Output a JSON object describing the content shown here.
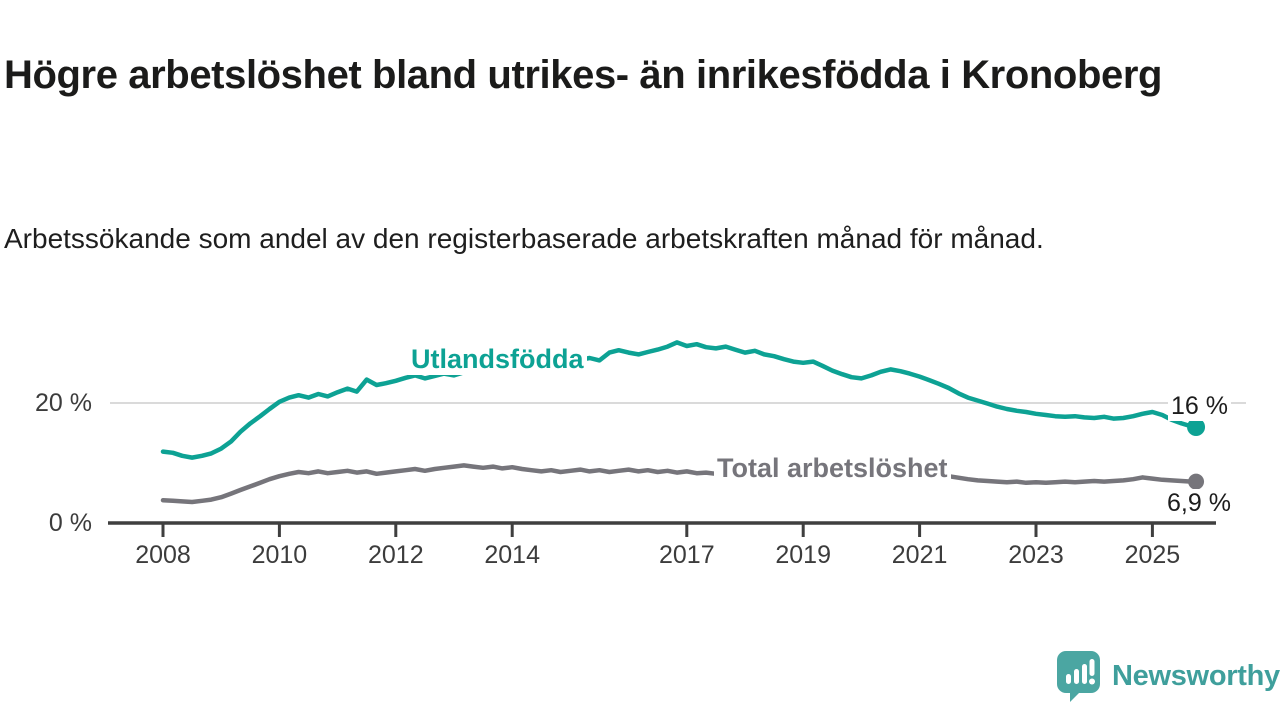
{
  "header": {
    "title": "Högre arbetslöshet bland utrikes- än inrikesfödda i Kronoberg",
    "subtitle": "Arbetssökande som andel av den registerbaserade arbetskraften månad för månad."
  },
  "footer": {
    "brand": "Newsworthy",
    "logo_icon": "bar-chart-speech-bubble-icon",
    "logo_color": "#4BA6A2",
    "text_color": "#3F9F9C"
  },
  "chart_data": {
    "type": "line",
    "title": "Högre arbetslöshet bland utrikes- än inrikesfödda i Kronoberg",
    "subtitle": "Arbetssökande som andel av den registerbaserade arbetskraften månad för månad.",
    "unit": "%",
    "xlabel": "",
    "ylabel": "",
    "x_range": [
      2007.1,
      2026.1
    ],
    "ylim": [
      0,
      33
    ],
    "grid": "horizontal line at 20 % only",
    "legend_position": "labels drawn on lines",
    "axis_color": "#3F3F3F",
    "grid_color": "#DADADA",
    "y_ticks": [
      {
        "value": 20,
        "label": "20 %"
      },
      {
        "value": 0,
        "label": "0 %"
      }
    ],
    "x_ticks": [
      {
        "year": 2008,
        "label": "2008"
      },
      {
        "year": 2010,
        "label": "2010"
      },
      {
        "year": 2012,
        "label": "2012"
      },
      {
        "year": 2014,
        "label": "2014"
      },
      {
        "year": 2017,
        "label": "2017"
      },
      {
        "year": 2019,
        "label": "2019"
      },
      {
        "year": 2021,
        "label": "2021"
      },
      {
        "year": 2023,
        "label": "2023"
      },
      {
        "year": 2025,
        "label": "2025"
      }
    ],
    "series": [
      {
        "name": "Utlandsfödda",
        "color": "#0DA294",
        "end_value": 16,
        "end_label": "16 %",
        "end_dot": true,
        "points": [
          [
            2008.0,
            11.9
          ],
          [
            2008.17,
            11.7
          ],
          [
            2008.33,
            11.2
          ],
          [
            2008.5,
            10.9
          ],
          [
            2008.67,
            11.2
          ],
          [
            2008.83,
            11.6
          ],
          [
            2009.0,
            12.4
          ],
          [
            2009.17,
            13.6
          ],
          [
            2009.33,
            15.2
          ],
          [
            2009.5,
            16.6
          ],
          [
            2009.67,
            17.8
          ],
          [
            2009.83,
            19.0
          ],
          [
            2010.0,
            20.2
          ],
          [
            2010.17,
            20.9
          ],
          [
            2010.33,
            21.3
          ],
          [
            2010.5,
            20.9
          ],
          [
            2010.67,
            21.5
          ],
          [
            2010.83,
            21.1
          ],
          [
            2011.0,
            21.8
          ],
          [
            2011.17,
            22.4
          ],
          [
            2011.33,
            21.9
          ],
          [
            2011.5,
            23.9
          ],
          [
            2011.67,
            23.0
          ],
          [
            2011.83,
            23.3
          ],
          [
            2012.0,
            23.7
          ],
          [
            2012.17,
            24.2
          ],
          [
            2012.33,
            24.6
          ],
          [
            2012.5,
            24.1
          ],
          [
            2012.67,
            24.5
          ],
          [
            2012.83,
            24.9
          ],
          [
            2013.0,
            24.6
          ],
          [
            2013.17,
            25.1
          ],
          [
            2013.33,
            25.4
          ],
          [
            2013.5,
            25.1
          ],
          [
            2013.67,
            25.6
          ],
          [
            2013.83,
            25.9
          ],
          [
            2014.0,
            25.7
          ],
          [
            2014.17,
            26.2
          ],
          [
            2014.33,
            26.4
          ],
          [
            2014.5,
            26.1
          ],
          [
            2014.67,
            26.5
          ],
          [
            2014.83,
            26.8
          ],
          [
            2015.0,
            26.6
          ],
          [
            2015.17,
            27.2
          ],
          [
            2015.33,
            27.5
          ],
          [
            2015.5,
            27.1
          ],
          [
            2015.67,
            28.4
          ],
          [
            2015.83,
            28.8
          ],
          [
            2016.0,
            28.4
          ],
          [
            2016.17,
            28.1
          ],
          [
            2016.33,
            28.5
          ],
          [
            2016.5,
            28.9
          ],
          [
            2016.67,
            29.4
          ],
          [
            2016.83,
            30.1
          ],
          [
            2017.0,
            29.5
          ],
          [
            2017.17,
            29.8
          ],
          [
            2017.33,
            29.3
          ],
          [
            2017.5,
            29.1
          ],
          [
            2017.67,
            29.4
          ],
          [
            2017.83,
            28.9
          ],
          [
            2018.0,
            28.4
          ],
          [
            2018.17,
            28.7
          ],
          [
            2018.33,
            28.1
          ],
          [
            2018.5,
            27.8
          ],
          [
            2018.67,
            27.3
          ],
          [
            2018.83,
            26.9
          ],
          [
            2019.0,
            26.7
          ],
          [
            2019.17,
            26.9
          ],
          [
            2019.33,
            26.2
          ],
          [
            2019.5,
            25.4
          ],
          [
            2019.67,
            24.8
          ],
          [
            2019.83,
            24.3
          ],
          [
            2020.0,
            24.1
          ],
          [
            2020.17,
            24.6
          ],
          [
            2020.33,
            25.2
          ],
          [
            2020.5,
            25.6
          ],
          [
            2020.67,
            25.3
          ],
          [
            2020.83,
            24.9
          ],
          [
            2021.0,
            24.4
          ],
          [
            2021.17,
            23.8
          ],
          [
            2021.33,
            23.2
          ],
          [
            2021.5,
            22.5
          ],
          [
            2021.67,
            21.6
          ],
          [
            2021.83,
            20.9
          ],
          [
            2022.0,
            20.4
          ],
          [
            2022.17,
            19.9
          ],
          [
            2022.33,
            19.4
          ],
          [
            2022.5,
            19.0
          ],
          [
            2022.67,
            18.7
          ],
          [
            2022.83,
            18.5
          ],
          [
            2023.0,
            18.2
          ],
          [
            2023.17,
            18.0
          ],
          [
            2023.33,
            17.8
          ],
          [
            2023.5,
            17.7
          ],
          [
            2023.67,
            17.8
          ],
          [
            2023.83,
            17.6
          ],
          [
            2024.0,
            17.5
          ],
          [
            2024.17,
            17.7
          ],
          [
            2024.33,
            17.4
          ],
          [
            2024.5,
            17.5
          ],
          [
            2024.67,
            17.8
          ],
          [
            2024.83,
            18.2
          ],
          [
            2025.0,
            18.5
          ],
          [
            2025.17,
            18.0
          ],
          [
            2025.33,
            17.2
          ],
          [
            2025.5,
            16.6
          ],
          [
            2025.67,
            16.1
          ],
          [
            2025.75,
            16.0
          ]
        ]
      },
      {
        "name": "Total arbetslöshet",
        "color": "#76757B",
        "end_value": 6.9,
        "end_label": "6,9 %",
        "end_dot": true,
        "points": [
          [
            2008.0,
            3.8
          ],
          [
            2008.17,
            3.7
          ],
          [
            2008.33,
            3.6
          ],
          [
            2008.5,
            3.5
          ],
          [
            2008.67,
            3.7
          ],
          [
            2008.83,
            3.9
          ],
          [
            2009.0,
            4.3
          ],
          [
            2009.17,
            4.9
          ],
          [
            2009.33,
            5.5
          ],
          [
            2009.5,
            6.1
          ],
          [
            2009.67,
            6.7
          ],
          [
            2009.83,
            7.3
          ],
          [
            2010.0,
            7.8
          ],
          [
            2010.17,
            8.2
          ],
          [
            2010.33,
            8.5
          ],
          [
            2010.5,
            8.3
          ],
          [
            2010.67,
            8.6
          ],
          [
            2010.83,
            8.3
          ],
          [
            2011.0,
            8.5
          ],
          [
            2011.17,
            8.7
          ],
          [
            2011.33,
            8.4
          ],
          [
            2011.5,
            8.6
          ],
          [
            2011.67,
            8.2
          ],
          [
            2011.83,
            8.4
          ],
          [
            2012.0,
            8.6
          ],
          [
            2012.17,
            8.8
          ],
          [
            2012.33,
            9.0
          ],
          [
            2012.5,
            8.7
          ],
          [
            2012.67,
            9.0
          ],
          [
            2012.83,
            9.2
          ],
          [
            2013.0,
            9.4
          ],
          [
            2013.17,
            9.6
          ],
          [
            2013.33,
            9.4
          ],
          [
            2013.5,
            9.2
          ],
          [
            2013.67,
            9.4
          ],
          [
            2013.83,
            9.1
          ],
          [
            2014.0,
            9.3
          ],
          [
            2014.17,
            9.0
          ],
          [
            2014.33,
            8.8
          ],
          [
            2014.5,
            8.6
          ],
          [
            2014.67,
            8.8
          ],
          [
            2014.83,
            8.5
          ],
          [
            2015.0,
            8.7
          ],
          [
            2015.17,
            8.9
          ],
          [
            2015.33,
            8.6
          ],
          [
            2015.5,
            8.8
          ],
          [
            2015.67,
            8.5
          ],
          [
            2015.83,
            8.7
          ],
          [
            2016.0,
            8.9
          ],
          [
            2016.17,
            8.6
          ],
          [
            2016.33,
            8.8
          ],
          [
            2016.5,
            8.5
          ],
          [
            2016.67,
            8.7
          ],
          [
            2016.83,
            8.4
          ],
          [
            2017.0,
            8.6
          ],
          [
            2017.17,
            8.3
          ],
          [
            2017.33,
            8.4
          ],
          [
            2017.5,
            8.2
          ],
          [
            2017.67,
            8.0
          ],
          [
            2018.0,
            7.7
          ],
          [
            2018.5,
            7.4
          ],
          [
            2019.0,
            7.6
          ],
          [
            2019.5,
            7.3
          ],
          [
            2020.0,
            8.0
          ],
          [
            2020.33,
            9.2
          ],
          [
            2020.67,
            9.0
          ],
          [
            2021.0,
            8.5
          ],
          [
            2021.5,
            7.8
          ],
          [
            2021.83,
            7.3
          ],
          [
            2022.0,
            7.1
          ],
          [
            2022.17,
            7.0
          ],
          [
            2022.33,
            6.9
          ],
          [
            2022.5,
            6.8
          ],
          [
            2022.67,
            6.9
          ],
          [
            2022.83,
            6.7
          ],
          [
            2023.0,
            6.8
          ],
          [
            2023.17,
            6.7
          ],
          [
            2023.33,
            6.8
          ],
          [
            2023.5,
            6.9
          ],
          [
            2023.67,
            6.8
          ],
          [
            2023.83,
            6.9
          ],
          [
            2024.0,
            7.0
          ],
          [
            2024.17,
            6.9
          ],
          [
            2024.33,
            7.0
          ],
          [
            2024.5,
            7.1
          ],
          [
            2024.67,
            7.3
          ],
          [
            2024.83,
            7.6
          ],
          [
            2025.0,
            7.4
          ],
          [
            2025.17,
            7.2
          ],
          [
            2025.33,
            7.1
          ],
          [
            2025.5,
            7.0
          ],
          [
            2025.67,
            6.9
          ],
          [
            2025.75,
            6.9
          ]
        ]
      }
    ]
  }
}
